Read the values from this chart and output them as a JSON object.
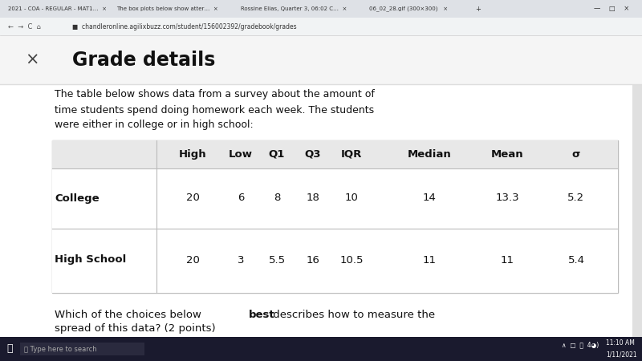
{
  "page_title": "Grade details",
  "desc1": "The table below shows data from a survey about the amount of",
  "desc2": "time students spend doing homework each week. The students",
  "desc3": "were either in college or in high school:",
  "col_headers": [
    "High",
    "Low",
    "Q1",
    "Q3",
    "IQR",
    "Median",
    "Mean",
    "σ"
  ],
  "rows": [
    [
      "College",
      "20",
      "6",
      "8",
      "18",
      "10",
      "14",
      "13.3",
      "5.2"
    ],
    [
      "High School",
      "20",
      "3",
      "5.5",
      "16",
      "10.5",
      "11",
      "11",
      "5.4"
    ]
  ],
  "q_pre": "Which of the choices below ",
  "q_bold": "best",
  "q_post": " describes how to measure the",
  "q_line2": "spread of this data? (2 points)",
  "bg_white": "#ffffff",
  "bg_gray": "#f0f0f0",
  "tab_bg": "#dee1e6",
  "addr_bg": "#f1f3f4",
  "table_outer_bg": "#e8e8e8",
  "table_inner_bg": "#ffffff",
  "table_header_bg": "#e8e8e8",
  "border_color": "#bbbbbb",
  "text_dark": "#111111",
  "text_gray": "#555555",
  "taskbar_bg": "#1e1e2e",
  "tab_text_color": "#333333",
  "addr_text_color": "#333333"
}
